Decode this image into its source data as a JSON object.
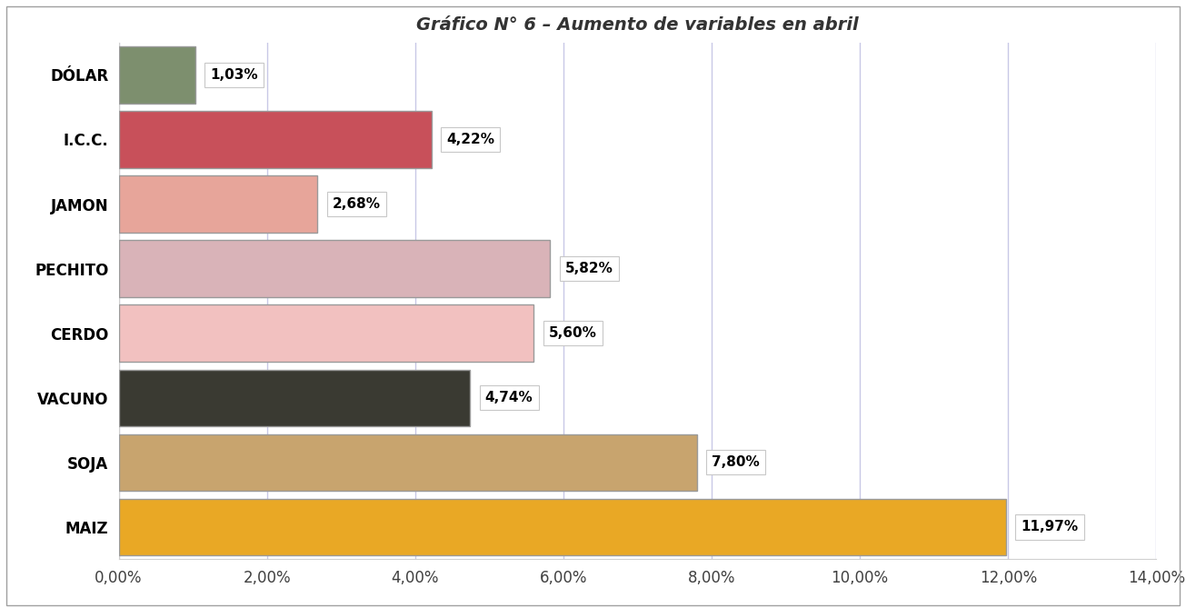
{
  "chart_data": {
    "type": "bar",
    "title": "Gráfico N° 6 – Aumento de variables en abril",
    "orientation": "horizontal",
    "categories": [
      "DÓLAR",
      "I.C.C.",
      "JAMON",
      "PECHITO",
      "CERDO",
      "VACUNO",
      "SOJA",
      "MAIZ"
    ],
    "values": [
      1.03,
      4.22,
      2.68,
      5.82,
      5.6,
      4.74,
      7.8,
      11.97
    ],
    "value_labels": [
      "1,03%",
      "4,22%",
      "2,68%",
      "5,82%",
      "5,60%",
      "4,74%",
      "7,80%",
      "11,97%"
    ],
    "colors": [
      "#7d8f6e",
      "#c8505a",
      "#e7a59a",
      "#d9b3b8",
      "#f2c1c0",
      "#3a3a32",
      "#c8a46e",
      "#e9a825"
    ],
    "data_labels": true,
    "grid": true,
    "xlim": [
      0,
      14
    ],
    "xticks": [
      {
        "value": 0,
        "label": "0,00%"
      },
      {
        "value": 2,
        "label": "2,00%"
      },
      {
        "value": 4,
        "label": "4,00%"
      },
      {
        "value": 6,
        "label": "6,00%"
      },
      {
        "value": 8,
        "label": "8,00%"
      },
      {
        "value": 10,
        "label": "10,00%"
      },
      {
        "value": 12,
        "label": "12,00%"
      },
      {
        "value": 14,
        "label": "14,00%"
      }
    ]
  }
}
